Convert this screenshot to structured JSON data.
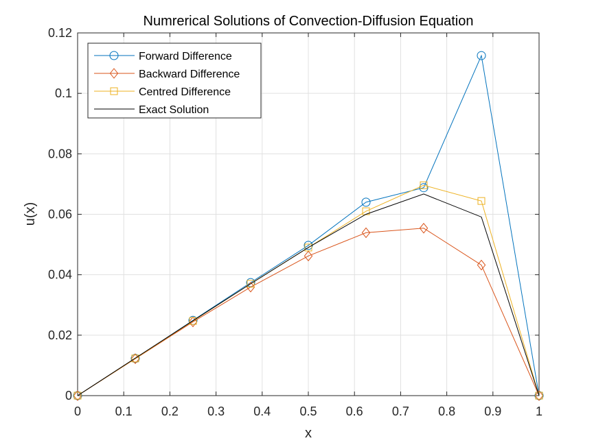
{
  "chart_data": {
    "type": "line",
    "title": "Numrerical Solutions of Convection-Diffusion Equation",
    "xlabel": "x",
    "ylabel": "u(x)",
    "xlim": [
      0,
      1
    ],
    "ylim": [
      0,
      0.12
    ],
    "grid": true,
    "legend_position": "top-left",
    "xticks": [
      0,
      0.1,
      0.2,
      0.3,
      0.4,
      0.5,
      0.6,
      0.7,
      0.8,
      0.9,
      1
    ],
    "xtick_labels": [
      "0",
      "0.1",
      "0.2",
      "0.3",
      "0.4",
      "0.5",
      "0.6",
      "0.7",
      "0.8",
      "0.9",
      "1"
    ],
    "yticks": [
      0,
      0.02,
      0.04,
      0.06,
      0.08,
      0.1,
      0.12
    ],
    "ytick_labels": [
      "0",
      "0.02",
      "0.04",
      "0.06",
      "0.08",
      "0.1",
      "0.12"
    ],
    "x": [
      0,
      0.125,
      0.25,
      0.375,
      0.5,
      0.625,
      0.75,
      0.875,
      1
    ],
    "series": [
      {
        "name": "Forward Difference",
        "color": "#0072BD",
        "marker": "circle",
        "values": [
          0,
          0.0123,
          0.0249,
          0.0374,
          0.0497,
          0.064,
          0.0688,
          0.1125,
          0
        ]
      },
      {
        "name": "Backward Difference",
        "color": "#D95319",
        "marker": "diamond",
        "values": [
          0,
          0.0122,
          0.0244,
          0.0359,
          0.0462,
          0.0539,
          0.0554,
          0.0432,
          0
        ]
      },
      {
        "name": "Centred Difference",
        "color": "#EDB120",
        "marker": "square",
        "values": [
          0,
          0.0123,
          0.0247,
          0.037,
          0.049,
          0.061,
          0.0696,
          0.0644,
          0
        ]
      },
      {
        "name": "Exact Solution",
        "color": "#000000",
        "marker": "none",
        "values": [
          0,
          0.0124,
          0.0248,
          0.037,
          0.049,
          0.06,
          0.0667,
          0.0591,
          0
        ]
      }
    ]
  }
}
